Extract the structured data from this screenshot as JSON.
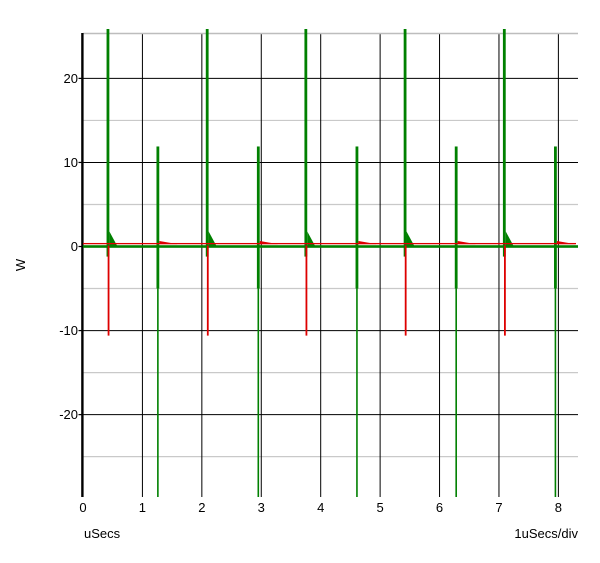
{
  "chart_data": {
    "type": "line",
    "title": "",
    "ylabel": "W",
    "xlabel": "uSecs",
    "x_scale_label": "1uSecs/div",
    "xlim": [
      0,
      8.33
    ],
    "ylim": [
      -29.8,
      25.4
    ],
    "x_ticks": [
      0,
      1,
      2,
      3,
      4,
      5,
      6,
      7,
      8
    ],
    "y_ticks": [
      -20,
      -10,
      0,
      10,
      20
    ],
    "y_minor_ticks": [
      -25,
      -15,
      -5,
      5,
      15
    ],
    "grid": "major-black-solid, minor-light-gray, top-border-gray, no-right-bottom-border",
    "colors": {
      "trace_green": "#008000",
      "trace_red": "#dd0000",
      "grid_major": "#000000",
      "grid_minor": "#c9c9c9",
      "plot_border": "#bdbdbd",
      "axis": "#000000",
      "text": "#000000",
      "background": "#ffffff"
    },
    "series": [
      {
        "name": "green power trace",
        "color": "#008000",
        "baseline_w": 0,
        "tall_spikes": {
          "x_usecs": [
            0.42,
            2.09,
            3.75,
            5.42,
            7.09
          ],
          "peak_w": 25.9,
          "clipped_at_top": true,
          "undershoot_w": -1.2,
          "tail_peak_w": 1.8,
          "tail_width_usecs": 0.17
        },
        "medium_spikes": {
          "x_usecs": [
            1.26,
            2.95,
            4.61,
            6.28,
            7.95
          ],
          "peak_w": 11.9,
          "body_bottom_w": -5.0,
          "needle_bottom_w": -29.8,
          "needle_clipped_at_bottom": true
        }
      },
      {
        "name": "red power trace",
        "color": "#dd0000",
        "baseline_w": 0.35,
        "down_spikes": {
          "x_usecs": [
            0.43,
            2.1,
            3.76,
            5.43,
            7.1
          ],
          "bottom_w": -10.6
        },
        "bumps": {
          "x_usecs": [
            1.26,
            2.95,
            4.61,
            6.28,
            7.95
          ],
          "peak_w": 0.65,
          "width_usecs": 0.33
        }
      }
    ]
  }
}
